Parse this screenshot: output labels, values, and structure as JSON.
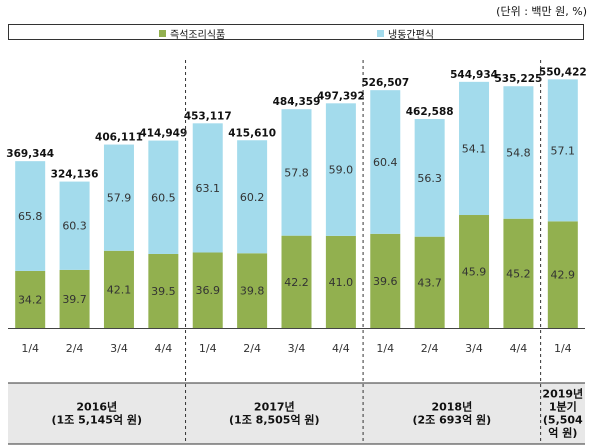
{
  "unit_note": "(단위 : 백만 원, %)",
  "legend": [
    {
      "name": "즉석조리식품",
      "color": "#92b04f"
    },
    {
      "name": "냉동간편식",
      "color": "#a3dbec"
    }
  ],
  "chart_data": {
    "type": "bar",
    "stacked": true,
    "stacking": "percent",
    "categories": [
      "1/4",
      "2/4",
      "3/4",
      "4/4",
      "1/4",
      "2/4",
      "3/4",
      "4/4",
      "1/4",
      "2/4",
      "3/4",
      "4/4",
      "1/4"
    ],
    "series": [
      {
        "name": "즉석조리식품",
        "color": "#92b04f",
        "values": [
          34.2,
          39.7,
          42.1,
          39.5,
          36.9,
          39.8,
          42.2,
          41.0,
          39.6,
          43.7,
          45.9,
          45.2,
          42.9
        ],
        "labels": [
          "34.2",
          "39.7",
          "42.1",
          "39.5",
          "36.9",
          "39.8",
          "42.2",
          "41.0",
          "39.6",
          "43.7",
          "45.9",
          "45.2",
          "42.9"
        ]
      },
      {
        "name": "냉동간편식",
        "color": "#a3dbec",
        "values": [
          65.8,
          60.3,
          57.9,
          60.5,
          63.1,
          60.2,
          57.8,
          59.0,
          60.4,
          56.3,
          54.1,
          54.8,
          57.1
        ],
        "labels": [
          "65.8",
          "60.3",
          "57.9",
          "60.5",
          "63.1",
          "60.2",
          "57.8",
          "59.0",
          "60.4",
          "56.3",
          "54.1",
          "54.8",
          "57.1"
        ]
      }
    ],
    "totals": [
      369344,
      324136,
      406111,
      414949,
      453117,
      415610,
      484359,
      497392,
      526507,
      462588,
      544934,
      535225,
      550422
    ],
    "total_labels": [
      "369,344",
      "324,136",
      "406,111",
      "414,949",
      "453,117",
      "415,610",
      "484,359",
      "497,392",
      "526,507",
      "462,588",
      "544,934",
      "535,225",
      "550,422"
    ],
    "groups": [
      {
        "lines": [
          "2016년",
          "(1조 5,145억 원)"
        ],
        "count": 4
      },
      {
        "lines": [
          "2017년",
          "(1조 8,505억 원)"
        ],
        "count": 4
      },
      {
        "lines": [
          "2018년",
          "(2조 693억 원)"
        ],
        "count": 4
      },
      {
        "lines": [
          "2019년",
          "1분기",
          "(5,504",
          "억 원)"
        ],
        "count": 1
      }
    ],
    "total_ylim": [
      0,
      580000
    ]
  }
}
